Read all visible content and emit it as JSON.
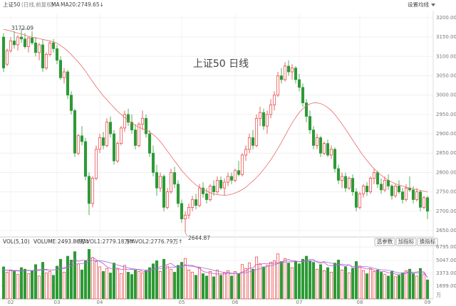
{
  "chart_data": {
    "type": "candlestick",
    "title": "上证50",
    "subtitle": "(日线,前复权)",
    "ma_label": "MA",
    "settings_label": "设置均线",
    "annotation_title": "上证50  日线",
    "up_color": "#e83a3a",
    "down_color": "#2e9a36",
    "grid": true,
    "ylim": [
      2639,
      3209
    ],
    "yticks": [
      {
        "value": 3200,
        "label": "3200.00"
      },
      {
        "value": 3150,
        "label": "3150.00"
      },
      {
        "value": 3100,
        "label": "3100.00"
      },
      {
        "value": 3050,
        "label": "3050.00"
      },
      {
        "value": 3000,
        "label": "3000.00"
      },
      {
        "value": 2950,
        "label": "2950.00"
      },
      {
        "value": 2900,
        "label": "2900.00"
      },
      {
        "value": 2850,
        "label": "2850.00"
      },
      {
        "value": 2800,
        "label": "2800.00"
      },
      {
        "value": 2750,
        "label": "2750.00"
      },
      {
        "value": 2700,
        "label": "2700.00"
      },
      {
        "value": 2650,
        "label": "2650.00"
      }
    ],
    "annotated_points": [
      {
        "list": "high",
        "index": 5
      },
      {
        "list": "low",
        "index": 51
      }
    ],
    "categories": [
      null,
      null,
      "02",
      null,
      null,
      null,
      null,
      null,
      null,
      null,
      null,
      null,
      null,
      null,
      null,
      "03",
      null,
      null,
      null,
      null,
      null,
      null,
      null,
      null,
      null,
      null,
      null,
      "04",
      null,
      null,
      null,
      null,
      null,
      null,
      null,
      null,
      null,
      null,
      null,
      null,
      null,
      null,
      null,
      null,
      null,
      null,
      null,
      null,
      null,
      null,
      "05",
      null,
      null,
      null,
      null,
      null,
      null,
      null,
      null,
      null,
      null,
      null,
      null,
      null,
      null,
      "06",
      null,
      null,
      null,
      null,
      null,
      null,
      null,
      null,
      null,
      null,
      null,
      null,
      null,
      null,
      null,
      null,
      null,
      "07",
      null,
      null,
      null,
      null,
      null,
      null,
      null,
      null,
      null,
      null,
      null,
      null,
      null,
      null,
      null,
      null,
      "08",
      null,
      null,
      null,
      null,
      null,
      null,
      null,
      null,
      null,
      null,
      null,
      null,
      null,
      null,
      null,
      null,
      null,
      null,
      "09"
    ],
    "open": [
      3150,
      3080,
      3115,
      3140,
      3130,
      3150,
      3145,
      3125,
      3148,
      3135,
      3110,
      3130,
      3070,
      3105,
      3135,
      3120,
      3090,
      3045,
      3060,
      3000,
      2960,
      2850,
      2895,
      2880,
      2790,
      2720,
      2785,
      2860,
      2890,
      2870,
      2930,
      2900,
      2830,
      2875,
      2915,
      2950,
      2930,
      2910,
      2870,
      2925,
      2940,
      2900,
      2850,
      2800,
      2760,
      2790,
      2710,
      2750,
      2800,
      2770,
      2720,
      2680,
      2690,
      2710,
      2730,
      2715,
      2760,
      2745,
      2730,
      2765,
      2750,
      2780,
      2760,
      2775,
      2790,
      2780,
      2805,
      2795,
      2845,
      2860,
      2890,
      2870,
      2940,
      2955,
      2920,
      2950,
      2975,
      3000,
      3050,
      3040,
      3075,
      3060,
      3070,
      3040,
      3020,
      2980,
      2945,
      2910,
      2870,
      2890,
      2850,
      2875,
      2845,
      2860,
      2810,
      2780,
      2790,
      2760,
      2785,
      2750,
      2710,
      2745,
      2765,
      2750,
      2785,
      2800,
      2770,
      2755,
      2780,
      2765,
      2740,
      2765,
      2750,
      2730,
      2760,
      2755,
      2730,
      2750,
      2710,
      2735
    ],
    "high": [
      3160,
      3120,
      3150,
      3165,
      3155,
      3172.09,
      3160,
      3150,
      3165,
      3150,
      3135,
      3145,
      3110,
      3140,
      3145,
      3130,
      3100,
      3070,
      3065,
      3010,
      2965,
      2900,
      2920,
      2890,
      2800,
      2790,
      2870,
      2900,
      2905,
      2940,
      2945,
      2910,
      2880,
      2920,
      2960,
      2965,
      2950,
      2925,
      2930,
      2960,
      2950,
      2910,
      2870,
      2820,
      2800,
      2795,
      2760,
      2810,
      2815,
      2780,
      2730,
      2700,
      2720,
      2740,
      2745,
      2770,
      2775,
      2760,
      2770,
      2780,
      2790,
      2790,
      2785,
      2800,
      2800,
      2810,
      2830,
      2850,
      2870,
      2900,
      2910,
      2950,
      2970,
      2965,
      2960,
      2990,
      3010,
      3060,
      3070,
      3085,
      3090,
      3080,
      3075,
      3055,
      3030,
      2990,
      2960,
      2920,
      2900,
      2895,
      2880,
      2885,
      2870,
      2865,
      2820,
      2800,
      2800,
      2790,
      2795,
      2760,
      2750,
      2770,
      2775,
      2790,
      2810,
      2805,
      2785,
      2790,
      2795,
      2770,
      2770,
      2780,
      2760,
      2770,
      2790,
      2765,
      2760,
      2755,
      2740,
      2740
    ],
    "low": [
      3060,
      3075,
      3110,
      3120,
      3115,
      3135,
      3120,
      3110,
      3130,
      3100,
      3090,
      3060,
      3065,
      3100,
      3110,
      3080,
      3040,
      3030,
      2990,
      2950,
      2840,
      2845,
      2870,
      2780,
      2690,
      2710,
      2780,
      2850,
      2860,
      2865,
      2890,
      2820,
      2825,
      2870,
      2905,
      2920,
      2900,
      2860,
      2865,
      2910,
      2890,
      2840,
      2790,
      2740,
      2750,
      2700,
      2705,
      2745,
      2760,
      2710,
      2670,
      2644.87,
      2680,
      2700,
      2705,
      2710,
      2735,
      2720,
      2725,
      2740,
      2745,
      2755,
      2740,
      2765,
      2770,
      2775,
      2790,
      2790,
      2830,
      2850,
      2860,
      2865,
      2920,
      2910,
      2900,
      2940,
      2960,
      2995,
      3030,
      3035,
      3050,
      3040,
      3030,
      3010,
      2970,
      2930,
      2900,
      2860,
      2860,
      2840,
      2845,
      2840,
      2835,
      2800,
      2770,
      2760,
      2750,
      2755,
      2740,
      2700,
      2705,
      2735,
      2740,
      2745,
      2770,
      2760,
      2745,
      2750,
      2755,
      2730,
      2735,
      2745,
      2720,
      2725,
      2750,
      2720,
      2725,
      2700,
      2705,
      2680
    ],
    "close": [
      3070,
      3115,
      3140,
      3130,
      3150,
      3145,
      3125,
      3148,
      3135,
      3110,
      3130,
      3070,
      3105,
      3135,
      3120,
      3090,
      3045,
      3060,
      3000,
      2960,
      2850,
      2895,
      2880,
      2790,
      2720,
      2785,
      2860,
      2890,
      2870,
      2930,
      2900,
      2830,
      2875,
      2915,
      2950,
      2930,
      2910,
      2870,
      2925,
      2940,
      2900,
      2850,
      2800,
      2760,
      2790,
      2710,
      2750,
      2800,
      2770,
      2720,
      2680,
      2690,
      2710,
      2730,
      2715,
      2760,
      2745,
      2730,
      2765,
      2750,
      2780,
      2760,
      2775,
      2790,
      2780,
      2805,
      2795,
      2845,
      2860,
      2890,
      2870,
      2940,
      2955,
      2920,
      2950,
      2975,
      3000,
      3050,
      3040,
      3075,
      3060,
      3070,
      3040,
      3020,
      2980,
      2945,
      2910,
      2870,
      2890,
      2850,
      2875,
      2845,
      2860,
      2810,
      2780,
      2790,
      2760,
      2785,
      2750,
      2710,
      2745,
      2765,
      2750,
      2785,
      2800,
      2770,
      2755,
      2780,
      2765,
      2740,
      2765,
      2750,
      2730,
      2760,
      2755,
      2730,
      2750,
      2710,
      2735,
      2700
    ],
    "ma20": {
      "name": "MA20:2749.65↓",
      "color": "#e86a6a",
      "values": [
        3170,
        3168,
        3166,
        3163,
        3160,
        3158,
        3155,
        3152,
        3150,
        3148,
        3146,
        3144,
        3142,
        3140,
        3138,
        3134,
        3128,
        3122,
        3114,
        3105,
        3095,
        3085,
        3074,
        3062,
        3048,
        3035,
        3022,
        3010,
        2998,
        2988,
        2978,
        2968,
        2958,
        2950,
        2942,
        2935,
        2928,
        2922,
        2917,
        2913,
        2910,
        2905,
        2898,
        2890,
        2880,
        2868,
        2855,
        2843,
        2830,
        2818,
        2805,
        2795,
        2785,
        2776,
        2768,
        2762,
        2756,
        2752,
        2748,
        2745,
        2743,
        2742,
        2741,
        2742,
        2744,
        2747,
        2751,
        2756,
        2762,
        2770,
        2778,
        2787,
        2797,
        2808,
        2820,
        2833,
        2847,
        2862,
        2878,
        2895,
        2912,
        2928,
        2942,
        2955,
        2965,
        2972,
        2977,
        2980,
        2980,
        2978,
        2974,
        2968,
        2960,
        2950,
        2938,
        2925,
        2912,
        2898,
        2884,
        2870,
        2856,
        2843,
        2831,
        2820,
        2810,
        2801,
        2793,
        2786,
        2780,
        2775,
        2771,
        2768,
        2765,
        2762,
        2760,
        2758,
        2756,
        2754,
        2752,
        2749.65
      ]
    },
    "volume": {
      "label": "VOL(5,10)",
      "legend": "VOLUME:2493.86万↑",
      "unit": "万",
      "buttons": [
        "选参数",
        "加指标",
        "换指标"
      ],
      "ylim": [
        0,
        7000
      ],
      "yticks": [
        {
          "value": 6795,
          "label": "6795.00"
        },
        {
          "value": 5047,
          "label": "5047.00"
        },
        {
          "value": 3373,
          "label": "3373.00"
        },
        {
          "value": 1699,
          "label": "1699.00"
        }
      ],
      "values": [
        4200,
        3500,
        3800,
        3600,
        3200,
        4100,
        3900,
        3300,
        3700,
        4500,
        3000,
        4800,
        3400,
        3600,
        3100,
        4300,
        5200,
        3500,
        5600,
        5100,
        6200,
        4600,
        3800,
        5000,
        6500,
        5400,
        4900,
        4200,
        3600,
        4000,
        3400,
        4700,
        3900,
        3300,
        4400,
        3500,
        3200,
        3800,
        3600,
        3400,
        3700,
        4100,
        4600,
        5000,
        3600,
        5200,
        4300,
        3900,
        3500,
        4400,
        4800,
        5300,
        3800,
        3500,
        3100,
        4100,
        3300,
        3000,
        3600,
        2900,
        3800,
        3100,
        3400,
        3700,
        3000,
        3600,
        3300,
        4500,
        4000,
        4700,
        3900,
        5500,
        4600,
        4200,
        4400,
        4800,
        5000,
        5900,
        4900,
        5300,
        4700,
        4100,
        4900,
        4600,
        5200,
        5600,
        5000,
        4800,
        3900,
        4500,
        3700,
        4100,
        3500,
        4700,
        5100,
        3800,
        4200,
        3400,
        4000,
        4900,
        4300,
        3700,
        3300,
        3900,
        3600,
        3800,
        3500,
        3200,
        3000,
        3600,
        2900,
        3100,
        3400,
        3700,
        3900,
        3300,
        3000,
        4000,
        3200,
        2493.86
      ],
      "series": [
        {
          "name": "MAVOL1:2779.18万↑",
          "color": "#d04cd0",
          "values": [
            3800,
            3750,
            3700,
            3680,
            3660,
            3640,
            3700,
            3750,
            3720,
            3800,
            3820,
            3900,
            3880,
            3760,
            3800,
            3840,
            4160,
            4040,
            4320,
            4740,
            5180,
            4920,
            5060,
            5040,
            5220,
            5460,
            5140,
            4900,
            4620,
            4220,
            3980,
            3980,
            4040,
            3860,
            3920,
            3820,
            3900,
            3800,
            3840,
            3620,
            3580,
            3700,
            3880,
            4120,
            4200,
            4380,
            4520,
            4660,
            4300,
            4120,
            4140,
            4500,
            4280,
            4300,
            4180,
            4000,
            3620,
            3480,
            3420,
            3300,
            3260,
            3280,
            3260,
            3400,
            3260,
            3420,
            3300,
            3540,
            3660,
            4020,
            4080,
            4540,
            4540,
            4620,
            4600,
            4640,
            4690,
            4740,
            4800,
            5060,
            5160,
            4980,
            4980,
            4860,
            4980,
            5020,
            5180,
            5160,
            4780,
            4680,
            4780,
            4400,
            4340,
            4300,
            4500,
            4400,
            4280,
            4480,
            4060,
            4100,
            4160,
            4060,
            3920,
            4020,
            3760,
            3660,
            3620,
            3600,
            3420,
            3420,
            3240,
            3240,
            3220,
            3340,
            3580,
            3480,
            3540,
            3580,
            3560,
            2779.18
          ]
        },
        {
          "name": "MAVOL2:2776.79万↑",
          "color": "#8f79d6",
          "values": [
            3800,
            3780,
            3760,
            3740,
            3720,
            3700,
            3700,
            3710,
            3700,
            3720,
            3740,
            3780,
            3800,
            3780,
            3800,
            3820,
            3960,
            3980,
            4100,
            4300,
            4520,
            4600,
            4620,
            4720,
            4900,
            5060,
            5000,
            5000,
            4940,
            4840,
            4720,
            4560,
            4460,
            4300,
            4200,
            4060,
            3960,
            3920,
            3860,
            3800,
            3800,
            3800,
            3860,
            3920,
            3940,
            4000,
            4060,
            4160,
            4180,
            4160,
            4260,
            4380,
            4420,
            4400,
            4220,
            4180,
            4060,
            3980,
            3880,
            3740,
            3640,
            3560,
            3480,
            3460,
            3380,
            3360,
            3340,
            3400,
            3420,
            3560,
            3640,
            3840,
            3940,
            4120,
            4260,
            4360,
            4460,
            4640,
            4700,
            4840,
            4880,
            4860,
            4920,
            4880,
            4880,
            4960,
            4960,
            4980,
            4900,
            4820,
            4880,
            4780,
            4680,
            4580,
            4520,
            4560,
            4500,
            4460,
            4240,
            4300,
            4280,
            4240,
            4220,
            4140,
            4000,
            3900,
            3820,
            3800,
            3720,
            3720,
            3500,
            3440,
            3420,
            3500,
            3520,
            3360,
            3380,
            3380,
            3430,
            2776.79
          ]
        }
      ]
    }
  }
}
